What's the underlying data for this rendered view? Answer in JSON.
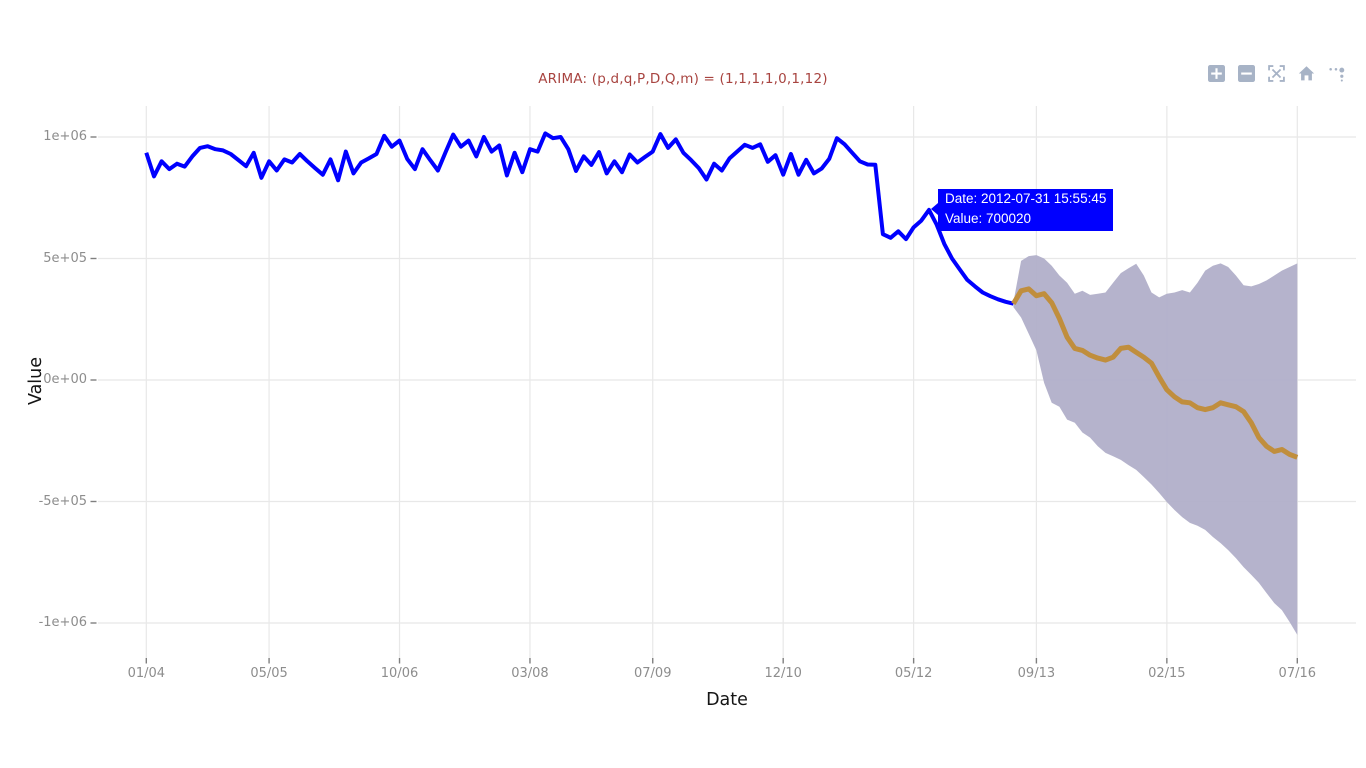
{
  "page": {
    "background": "#ffffff"
  },
  "modebar": {
    "color": "#a7b3c6",
    "icons": [
      {
        "name": "zoom-in"
      },
      {
        "name": "zoom-out"
      },
      {
        "name": "autoscale"
      },
      {
        "name": "reset-axes-home"
      },
      {
        "name": "plotly-logo"
      }
    ]
  },
  "tooltip": {
    "date_line": "Date: 2012-07-31 15:55:45",
    "value_line": "Value: 700020",
    "bg": "#0000ff",
    "text_color": "#ffffff",
    "anchor_series": "observed",
    "anchor_index": 102
  },
  "chart_data": {
    "type": "line",
    "title": "ARIMA: (p,d,q,P,D,Q,m) = (1,1,1,1,0,1,12)",
    "title_color": "#a84440",
    "xlabel": "Date",
    "ylabel": "Value",
    "grid": true,
    "legend": "none",
    "grid_color": "#e8e8e8",
    "tick_mark_color": "#7f7f7f",
    "tick_label_color": "#8d8d8d",
    "band_color": "#b1afc9",
    "x_unit": "months since 2004-01, monthly sampling at month end",
    "x_ticks": [
      {
        "label": "01/04",
        "month": 0
      },
      {
        "label": "05/05",
        "month": 16
      },
      {
        "label": "10/06",
        "month": 33
      },
      {
        "label": "03/08",
        "month": 50
      },
      {
        "label": "07/09",
        "month": 66
      },
      {
        "label": "12/10",
        "month": 83
      },
      {
        "label": "05/12",
        "month": 100
      },
      {
        "label": "09/13",
        "month": 116
      },
      {
        "label": "02/15",
        "month": 133
      },
      {
        "label": "07/16",
        "month": 150
      }
    ],
    "y_ticks": [
      {
        "label": "1e+06",
        "value": 1000000
      },
      {
        "label": "5e+05",
        "value": 500000
      },
      {
        "label": "0e+00",
        "value": 0
      },
      {
        "label": "-5e+05",
        "value": -500000
      },
      {
        "label": "-1e+06",
        "value": -1000000
      }
    ],
    "ylim": [
      -1100000,
      1100000
    ],
    "series": [
      {
        "name": "observed",
        "color": "#0000ff",
        "width": 4,
        "start_month": 0,
        "values": [
          935000,
          838000,
          900000,
          868000,
          890000,
          878000,
          920000,
          955000,
          962000,
          950000,
          945000,
          930000,
          905000,
          880000,
          935000,
          832000,
          900000,
          862000,
          908000,
          895000,
          930000,
          900000,
          872000,
          845000,
          908000,
          822000,
          940000,
          850000,
          895000,
          912000,
          930000,
          1005000,
          960000,
          985000,
          910000,
          868000,
          950000,
          905000,
          862000,
          938000,
          1010000,
          960000,
          985000,
          920000,
          1000000,
          940000,
          965000,
          842000,
          935000,
          855000,
          950000,
          940000,
          1015000,
          995000,
          1000000,
          950000,
          860000,
          920000,
          885000,
          938000,
          850000,
          900000,
          855000,
          928000,
          895000,
          918000,
          940000,
          1012000,
          955000,
          990000,
          935000,
          905000,
          872000,
          825000,
          890000,
          862000,
          912000,
          940000,
          968000,
          955000,
          970000,
          898000,
          925000,
          845000,
          930000,
          845000,
          906000,
          850000,
          870000,
          910000,
          995000,
          970000,
          935000,
          900000,
          887000,
          886000,
          600000,
          585000,
          612000,
          580000,
          628000,
          656000,
          700020,
          640000,
          560000,
          500000,
          455000,
          412000,
          385000,
          360000,
          345000,
          332000,
          322000,
          314000
        ]
      },
      {
        "name": "forecast",
        "color": "#c08e3d",
        "width": 5,
        "start_month": 113,
        "values": [
          314000,
          367000,
          375000,
          347000,
          355000,
          318000,
          253000,
          176000,
          130000,
          122000,
          102000,
          90000,
          82000,
          94000,
          130000,
          135000,
          114000,
          94000,
          69000,
          12000,
          -40000,
          -69000,
          -90000,
          -94000,
          -114000,
          -122000,
          -114000,
          -94000,
          -102000,
          -110000,
          -130000,
          -176000,
          -237000,
          -273000,
          -294000,
          -286000,
          -306000,
          -318000
        ]
      },
      {
        "name": "ci_upper",
        "type": "band-upper",
        "start_month": 113,
        "values": [
          320000,
          490000,
          510000,
          514000,
          500000,
          470000,
          430000,
          400000,
          355000,
          367000,
          350000,
          355000,
          360000,
          400000,
          440000,
          460000,
          478000,
          430000,
          360000,
          340000,
          355000,
          360000,
          370000,
          360000,
          400000,
          450000,
          470000,
          480000,
          465000,
          430000,
          390000,
          385000,
          395000,
          410000,
          430000,
          450000,
          465000,
          480000
        ]
      },
      {
        "name": "ci_lower",
        "type": "band-lower",
        "start_month": 113,
        "values": [
          300000,
          257000,
          190000,
          122000,
          -12000,
          -94000,
          -110000,
          -163000,
          -176000,
          -216000,
          -237000,
          -273000,
          -300000,
          -314000,
          -329000,
          -350000,
          -370000,
          -399000,
          -430000,
          -465000,
          -502000,
          -535000,
          -564000,
          -588000,
          -600000,
          -617000,
          -646000,
          -671000,
          -700000,
          -733000,
          -770000,
          -802000,
          -835000,
          -877000,
          -918000,
          -947000,
          -996000,
          -1049000
        ]
      }
    ]
  }
}
